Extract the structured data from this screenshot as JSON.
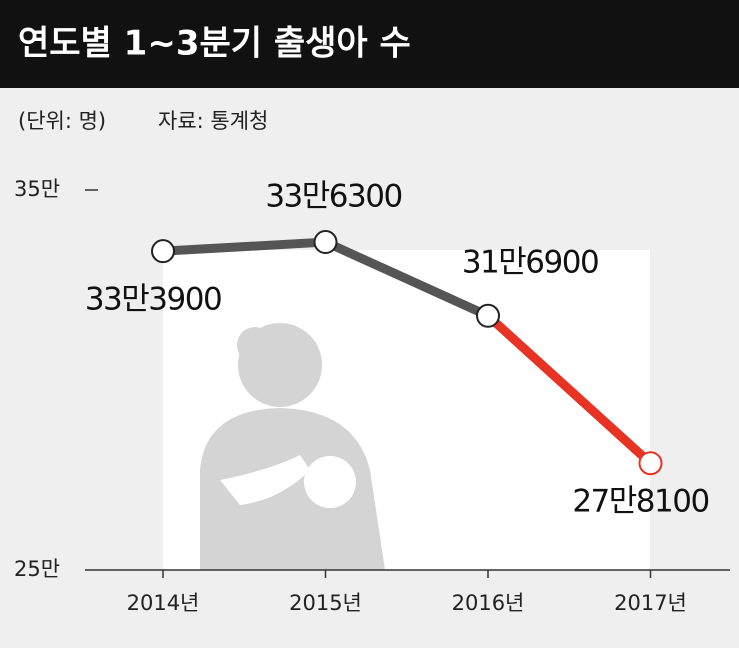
{
  "chart_data": {
    "type": "line",
    "title": "연도별 1~3분기 출생아 수",
    "unit_note": "(단위: 명)",
    "source": "자료: 통계청",
    "categories": [
      "2014년",
      "2015년",
      "2016년",
      "2017년"
    ],
    "series": [
      {
        "color": "#555555",
        "highlight_color": "#e63323",
        "values": [
          333900,
          336300,
          316900,
          278100
        ],
        "value_labels": [
          "33만3900",
          "33만6300",
          "31만6900",
          "27만8100"
        ]
      }
    ],
    "ylim": [
      250000,
      350000
    ],
    "yticks": [
      {
        "value": 250000,
        "label": "25만"
      },
      {
        "value": 350000,
        "label": "35만"
      }
    ]
  }
}
